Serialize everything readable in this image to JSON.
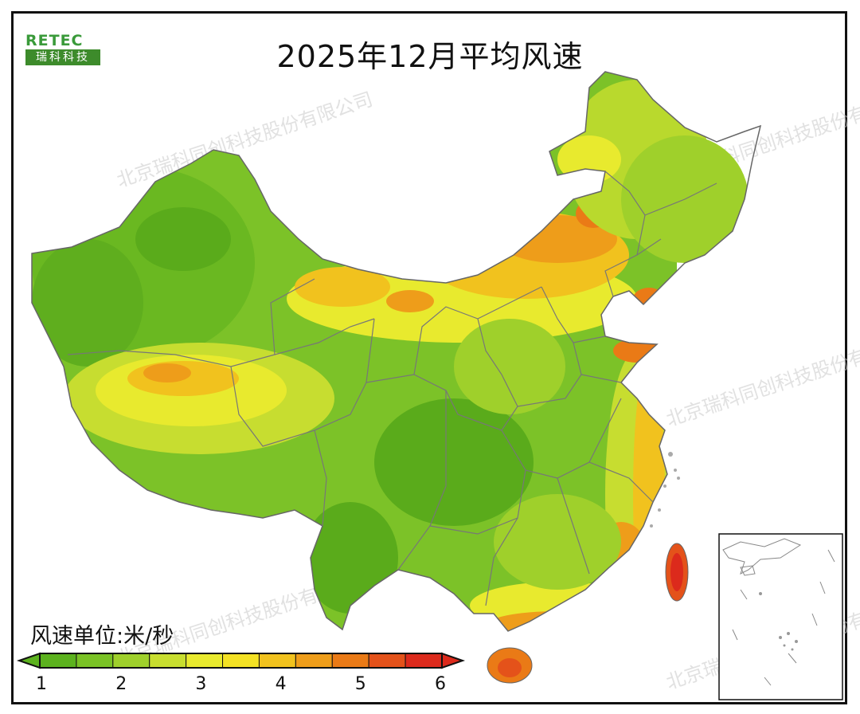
{
  "title": "2025年12月平均风速",
  "logo": {
    "en": "RETEC",
    "cn": "瑞科科技"
  },
  "watermark": "北京瑞科同创科技股份有限公司",
  "legend": {
    "unit_label": "风速单位:米/秒",
    "ticks": [
      "1",
      "2",
      "3",
      "4",
      "5",
      "6"
    ],
    "range": [
      1,
      6
    ],
    "colors": [
      "#5cb21e",
      "#7ac225",
      "#9fd02b",
      "#c8de2f",
      "#e9ea2e",
      "#f4e224",
      "#f1c21e",
      "#ee9d1a",
      "#ea7a16",
      "#e4521a",
      "#dc2a1c"
    ]
  },
  "map": {
    "region": "China",
    "inset": "South China Sea islands"
  }
}
